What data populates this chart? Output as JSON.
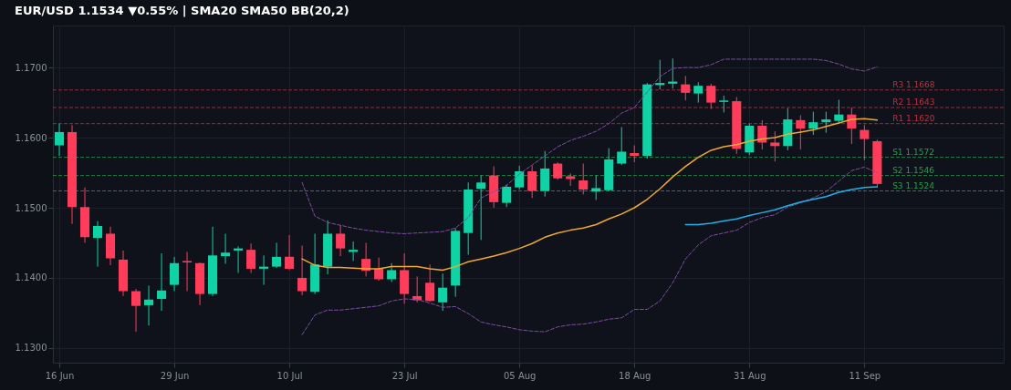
{
  "chart_data": {
    "type": "candlestick",
    "title": "EUR/USD  1.1534  ▼0.55%  |  SMA20  SMA50  BB(20,2)",
    "categories": [
      "16 Jun",
      null,
      null,
      null,
      null,
      null,
      null,
      null,
      null,
      "29 Jun",
      null,
      null,
      null,
      null,
      null,
      null,
      null,
      null,
      "10 Jul",
      null,
      null,
      null,
      null,
      null,
      null,
      null,
      null,
      "23 Jul",
      null,
      null,
      null,
      null,
      null,
      null,
      null,
      null,
      "05 Aug",
      null,
      null,
      null,
      null,
      null,
      null,
      null,
      null,
      "18 Aug",
      null,
      null,
      null,
      null,
      null,
      null,
      null,
      null,
      "31 Aug",
      null,
      null,
      null,
      null,
      null,
      null,
      null,
      null,
      "11 Sep",
      null
    ],
    "ohlc": [
      [
        1.1589,
        1.162,
        1.1574,
        1.1608
      ],
      [
        1.1608,
        1.1618,
        1.1477,
        1.1501
      ],
      [
        1.1501,
        1.1529,
        1.145,
        1.1458
      ],
      [
        1.1457,
        1.1481,
        1.1416,
        1.1474
      ],
      [
        1.1463,
        1.1473,
        1.1418,
        1.1428
      ],
      [
        1.1426,
        1.1439,
        1.1374,
        1.1381
      ],
      [
        1.1381,
        1.1384,
        1.1323,
        1.136
      ],
      [
        1.1361,
        1.1389,
        1.1332,
        1.1369
      ],
      [
        1.137,
        1.1435,
        1.1353,
        1.1382
      ],
      [
        1.139,
        1.143,
        1.1381,
        1.1421
      ],
      [
        1.1424,
        1.1437,
        1.1381,
        1.1422
      ],
      [
        1.1421,
        1.1422,
        1.1361,
        1.1377
      ],
      [
        1.1377,
        1.1473,
        1.1374,
        1.1432
      ],
      [
        1.1431,
        1.1463,
        1.142,
        1.1436
      ],
      [
        1.1439,
        1.1445,
        1.1407,
        1.1442
      ],
      [
        1.144,
        1.1449,
        1.1407,
        1.1413
      ],
      [
        1.1413,
        1.1432,
        1.139,
        1.1416
      ],
      [
        1.1416,
        1.145,
        1.1414,
        1.143
      ],
      [
        1.143,
        1.1461,
        1.1411,
        1.1413
      ],
      [
        1.14,
        1.1446,
        1.1375,
        1.1381
      ],
      [
        1.138,
        1.1463,
        1.1377,
        1.1419
      ],
      [
        1.1416,
        1.1482,
        1.1405,
        1.1463
      ],
      [
        1.1463,
        1.1475,
        1.1431,
        1.1442
      ],
      [
        1.1437,
        1.1452,
        1.1424,
        1.144
      ],
      [
        1.1427,
        1.145,
        1.1402,
        1.141
      ],
      [
        1.1413,
        1.1429,
        1.1396,
        1.1398
      ],
      [
        1.1398,
        1.1421,
        1.1394,
        1.1411
      ],
      [
        1.1411,
        1.1435,
        1.1363,
        1.1377
      ],
      [
        1.1374,
        1.1402,
        1.1365,
        1.1368
      ],
      [
        1.1393,
        1.1419,
        1.1366,
        1.1367
      ],
      [
        1.1365,
        1.1406,
        1.1353,
        1.1386
      ],
      [
        1.1389,
        1.1471,
        1.1373,
        1.1467
      ],
      [
        1.1464,
        1.1536,
        1.1433,
        1.1526
      ],
      [
        1.1527,
        1.1546,
        1.1454,
        1.1536
      ],
      [
        1.1546,
        1.1559,
        1.15,
        1.1508
      ],
      [
        1.1507,
        1.1533,
        1.1501,
        1.153
      ],
      [
        1.1529,
        1.156,
        1.1526,
        1.1552
      ],
      [
        1.1552,
        1.156,
        1.1514,
        1.1524
      ],
      [
        1.1524,
        1.1581,
        1.1516,
        1.1556
      ],
      [
        1.1563,
        1.1565,
        1.154,
        1.1542
      ],
      [
        1.1545,
        1.1549,
        1.1531,
        1.1541
      ],
      [
        1.1539,
        1.1563,
        1.1519,
        1.1526
      ],
      [
        1.1523,
        1.1546,
        1.1511,
        1.1528
      ],
      [
        1.1525,
        1.1585,
        1.1524,
        1.1569
      ],
      [
        1.1563,
        1.1615,
        1.1561,
        1.158
      ],
      [
        1.1578,
        1.1589,
        1.1565,
        1.1574
      ],
      [
        1.1574,
        1.1678,
        1.157,
        1.1676
      ],
      [
        1.1675,
        1.1711,
        1.1669,
        1.1678
      ],
      [
        1.1677,
        1.1713,
        1.167,
        1.168
      ],
      [
        1.1676,
        1.1688,
        1.1653,
        1.1664
      ],
      [
        1.1663,
        1.1679,
        1.165,
        1.1674
      ],
      [
        1.1674,
        1.1677,
        1.1641,
        1.165
      ],
      [
        1.1651,
        1.166,
        1.1636,
        1.1653
      ],
      [
        1.1652,
        1.1658,
        1.1577,
        1.1584
      ],
      [
        1.1579,
        1.162,
        1.1575,
        1.1617
      ],
      [
        1.1617,
        1.1625,
        1.1583,
        1.1593
      ],
      [
        1.1593,
        1.1609,
        1.1566,
        1.1588
      ],
      [
        1.1588,
        1.1642,
        1.1582,
        1.1626
      ],
      [
        1.1625,
        1.1632,
        1.1583,
        1.1613
      ],
      [
        1.1613,
        1.1637,
        1.1604,
        1.1622
      ],
      [
        1.1622,
        1.1637,
        1.1607,
        1.1626
      ],
      [
        1.1624,
        1.1654,
        1.162,
        1.1633
      ],
      [
        1.1633,
        1.1643,
        1.1591,
        1.1613
      ],
      [
        1.1611,
        1.1618,
        1.1568,
        1.1598
      ],
      [
        1.1595,
        1.1597,
        1.1529,
        1.1534
      ]
    ],
    "colors": [
      "#0fd3a5",
      "#ff3d5a",
      "#ff3d5a",
      "#0fd3a5",
      "#ff3d5a",
      "#ff3d5a",
      "#ff3d5a",
      "#0fd3a5",
      "#0fd3a5",
      "#0fd3a5",
      "#ff3d5a",
      "#ff3d5a",
      "#0fd3a5",
      "#0fd3a5",
      "#0fd3a5",
      "#ff3d5a",
      "#0fd3a5",
      "#0fd3a5",
      "#ff3d5a",
      "#ff3d5a",
      "#0fd3a5",
      "#0fd3a5",
      "#ff3d5a",
      "#0fd3a5",
      "#ff3d5a",
      "#ff3d5a",
      "#0fd3a5",
      "#ff3d5a",
      "#ff3d5a",
      "#ff3d5a",
      "#0fd3a5",
      "#0fd3a5",
      "#0fd3a5",
      "#0fd3a5",
      "#ff3d5a",
      "#0fd3a5",
      "#0fd3a5",
      "#ff3d5a",
      "#0fd3a5",
      "#ff3d5a",
      "#ff3d5a",
      "#ff3d5a",
      "#0fd3a5",
      "#0fd3a5",
      "#0fd3a5",
      "#ff3d5a",
      "#0fd3a5",
      "#0fd3a5",
      "#0fd3a5",
      "#ff3d5a",
      "#0fd3a5",
      "#ff3d5a",
      "#0fd3a5",
      "#ff3d5a",
      "#0fd3a5",
      "#ff3d5a",
      "#ff3d5a",
      "#0fd3a5",
      "#ff3d5a",
      "#0fd3a5",
      "#0fd3a5",
      "#0fd3a5",
      "#ff3d5a",
      "#ff3d5a",
      "#ff3d5a"
    ],
    "series": [
      {
        "type": "line",
        "color": "#7b4fa0",
        "line_style": "dashed",
        "values": [
          null,
          null,
          null,
          null,
          null,
          null,
          null,
          null,
          null,
          null,
          null,
          null,
          null,
          null,
          null,
          null,
          null,
          null,
          null,
          1.1536,
          1.1488,
          1.1479,
          1.1475,
          1.1471,
          1.1468,
          1.1466,
          1.1464,
          1.1463,
          1.1464,
          1.1465,
          1.1466,
          1.1471,
          1.1486,
          1.1514,
          1.1523,
          1.1532,
          1.1548,
          1.1561,
          1.1574,
          1.1587,
          1.1596,
          1.1602,
          1.1609,
          1.162,
          1.1635,
          1.1643,
          1.1665,
          1.1687,
          1.1699,
          1.17,
          1.17,
          1.1704,
          1.1712,
          1.1712,
          1.1712,
          1.1712,
          1.1712,
          1.1712,
          1.1712,
          1.1712,
          1.171,
          1.1705,
          1.1698,
          1.1695,
          1.1701
        ]
      },
      {
        "type": "line",
        "color": "#7b4fa0",
        "line_style": "dashed",
        "values": [
          null,
          null,
          null,
          null,
          null,
          null,
          null,
          null,
          null,
          null,
          null,
          null,
          null,
          null,
          null,
          null,
          null,
          null,
          null,
          1.1319,
          1.1347,
          1.1354,
          1.1354,
          1.1356,
          1.1358,
          1.136,
          1.1367,
          1.137,
          1.1369,
          1.1364,
          1.1358,
          1.1359,
          1.1349,
          1.1337,
          1.1333,
          1.133,
          1.1326,
          1.1324,
          1.1323,
          1.133,
          1.1333,
          1.1334,
          1.1337,
          1.1341,
          1.1343,
          1.1355,
          1.1355,
          1.1367,
          1.1393,
          1.1427,
          1.1447,
          1.146,
          1.1464,
          1.1468,
          1.1479,
          1.1486,
          1.149,
          1.1501,
          1.1507,
          1.1514,
          1.1523,
          1.1538,
          1.1553,
          1.1558,
          1.155
        ]
      },
      {
        "type": "line",
        "color": "#f0a830",
        "line_style": "solid",
        "values": [
          null,
          null,
          null,
          null,
          null,
          null,
          null,
          null,
          null,
          null,
          null,
          null,
          null,
          null,
          null,
          null,
          null,
          null,
          null,
          1.1427,
          1.1418,
          1.1415,
          1.1415,
          1.1414,
          1.1413,
          1.1413,
          1.1416,
          1.1416,
          1.1416,
          1.1413,
          1.1411,
          1.1416,
          1.1423,
          1.1427,
          1.1431,
          1.1436,
          1.1442,
          1.1449,
          1.1458,
          1.1464,
          1.1468,
          1.1471,
          1.1476,
          1.1484,
          1.1491,
          1.15,
          1.1512,
          1.1527,
          1.1544,
          1.1559,
          1.1572,
          1.1582,
          1.1587,
          1.159,
          1.1595,
          1.1598,
          1.16,
          1.1605,
          1.1608,
          1.1611,
          1.1616,
          1.1621,
          1.1626,
          1.1627,
          1.1625
        ]
      },
      {
        "type": "line",
        "color": "#1fb1e8",
        "line_style": "solid",
        "values": [
          null,
          null,
          null,
          null,
          null,
          null,
          null,
          null,
          null,
          null,
          null,
          null,
          null,
          null,
          null,
          null,
          null,
          null,
          null,
          null,
          null,
          null,
          null,
          null,
          null,
          null,
          null,
          null,
          null,
          null,
          null,
          null,
          null,
          null,
          null,
          null,
          null,
          null,
          null,
          null,
          null,
          null,
          null,
          null,
          null,
          null,
          null,
          null,
          null,
          1.1476,
          1.1476,
          1.1478,
          1.1481,
          1.1484,
          1.1489,
          1.1493,
          1.1497,
          1.1503,
          1.1508,
          1.1512,
          1.1516,
          1.1522,
          1.1526,
          1.1529,
          1.153
        ]
      }
    ],
    "ref_lines": [
      {
        "axis": "y",
        "value": 1.1668,
        "label": "R3 1.1668",
        "color": "#b8323f",
        "line_style": "dashed"
      },
      {
        "axis": "y",
        "value": 1.1643,
        "label": "R2 1.1643",
        "color": "#b8323f",
        "line_style": "dashed"
      },
      {
        "axis": "y",
        "value": 1.162,
        "label": "R1 1.1620",
        "color": "#b8323f",
        "line_style": "dashed"
      },
      {
        "axis": "y",
        "value": 1.1572,
        "label": "S1 1.1572",
        "color": "#22a04b",
        "line_style": "dashed"
      },
      {
        "axis": "y",
        "value": 1.1546,
        "label": "S2 1.1546",
        "color": "#22a04b",
        "line_style": "dashed"
      },
      {
        "axis": "y",
        "value": 1.1524,
        "label": "S3 1.1524",
        "color": "#22a04b",
        "line_style": "dashed"
      }
    ],
    "ylim": [
      1.1279,
      1.176
    ],
    "yticks": [
      {
        "value": 1.13,
        "label": "1.1300"
      },
      {
        "value": 1.14,
        "label": "1.1400"
      },
      {
        "value": 1.15,
        "label": "1.1500"
      },
      {
        "value": 1.16,
        "label": "1.1600"
      },
      {
        "value": 1.17,
        "label": "1.1700"
      }
    ],
    "grid": true
  }
}
